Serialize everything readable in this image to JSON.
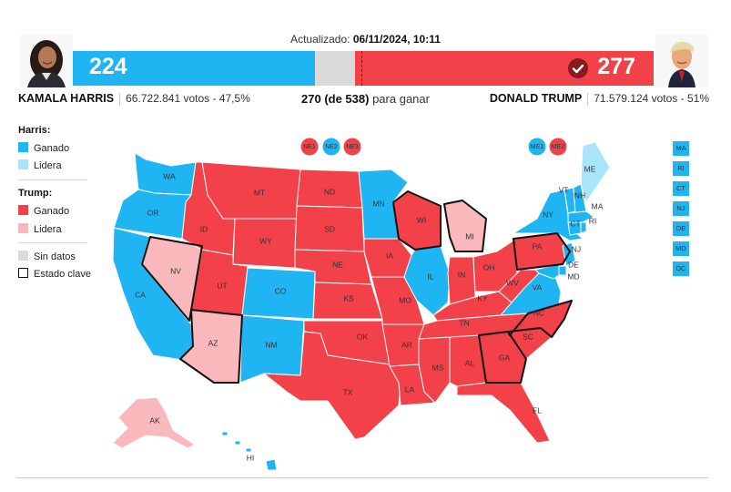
{
  "header": {
    "updated_label": "Actualizado:",
    "updated_value": "06/11/2024, 10:11",
    "to_win_bold": "270 (de 538)",
    "to_win_rest": "para ganar"
  },
  "candidates": {
    "harris": {
      "name": "KAMALA HARRIS",
      "votes": "66.722.841 votos - 47,5%",
      "electoral": "224"
    },
    "trump": {
      "name": "DONALD TRUMP",
      "votes": "71.579.124 votos - 51%",
      "electoral": "277"
    }
  },
  "bar": {
    "total": 538,
    "dem": 224,
    "rep": 277,
    "threshold": 270
  },
  "legend": {
    "harris_title": "Harris:",
    "trump_title": "Trump:",
    "won": "Ganado",
    "leads": "Lidera",
    "no_data": "Sin datos",
    "key_state": "Estado clave"
  },
  "colors": {
    "dem_won": "#1fb4f2",
    "dem_lead": "#a9e4fb",
    "rep_won": "#f24149",
    "rep_lead": "#f9b8bb",
    "no_data": "#dadada"
  },
  "states": {
    "WA": "WA",
    "OR": "OR",
    "CA": "CA",
    "NV": "NV",
    "ID": "ID",
    "MT": "MT",
    "WY": "WY",
    "UT": "UT",
    "AZ": "AZ",
    "CO": "CO",
    "NM": "NM",
    "ND": "ND",
    "SD": "SD",
    "NE": "NE",
    "KS": "KS",
    "OK": "OK",
    "TX": "TX",
    "MN": "MN",
    "IA": "IA",
    "MO": "MO",
    "AR": "AR",
    "LA": "LA",
    "WI": "WI",
    "IL": "IL",
    "MI": "MI",
    "IN": "IN",
    "OH": "OH",
    "KY": "KY",
    "TN": "TN",
    "MS": "MS",
    "AL": "AL",
    "GA": "GA",
    "FL": "FL",
    "SC": "SC",
    "NC": "NC",
    "VA": "VA",
    "WV": "WV",
    "PA": "PA",
    "NY": "NY",
    "VT": "VT",
    "NH": "NH",
    "ME": "ME",
    "MA": "MA",
    "RI": "RI",
    "CT": "CT",
    "NJ": "NJ",
    "DE": "DE",
    "MD": "MD",
    "AK": "AK",
    "HI": "HI"
  },
  "districts": [
    "NE1",
    "NE2",
    "NE3",
    "ME1",
    "ME2"
  ],
  "small_states": [
    "MA",
    "RI",
    "CT",
    "NJ",
    "DE",
    "MD",
    "DC"
  ]
}
